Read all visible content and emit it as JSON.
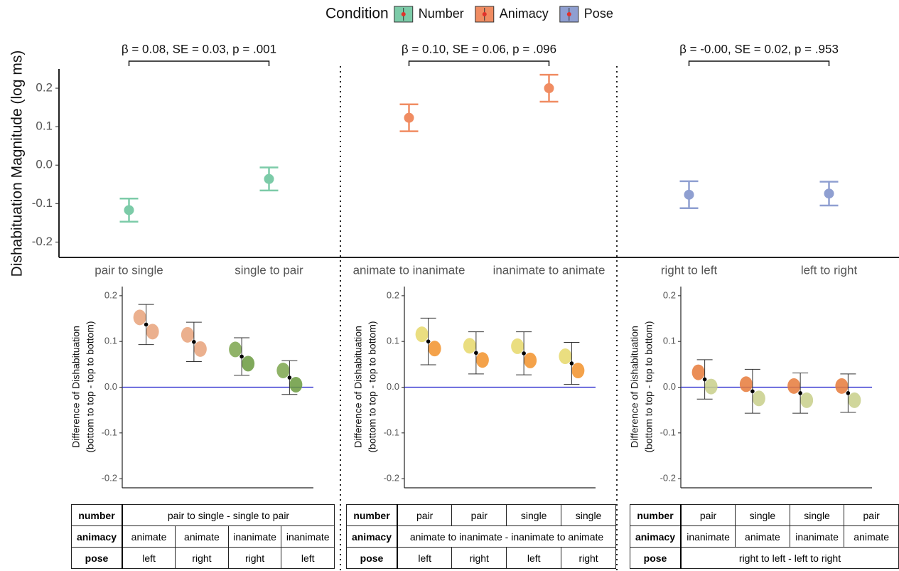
{
  "chart_data": [
    {
      "type": "errorbar",
      "legend_title": "Condition",
      "ylabel": "Dishabituation Magnitude (log ms)",
      "categories": [
        "pair to single",
        "single to pair",
        "animate to inanimate",
        "inanimate to animate",
        "right to left",
        "left to right"
      ],
      "series": [
        {
          "name": "Number",
          "color": "#7ccba8",
          "values": [
            -0.117,
            -0.036,
            null,
            null,
            null,
            null
          ],
          "errors": [
            0.03,
            0.03,
            null,
            null,
            null,
            null
          ]
        },
        {
          "name": "Animacy",
          "color": "#f08c62",
          "values": [
            null,
            null,
            0.123,
            0.2,
            null,
            null
          ],
          "errors": [
            null,
            null,
            0.035,
            0.035,
            null,
            null
          ]
        },
        {
          "name": "Pose",
          "color": "#8f9fd1",
          "values": [
            null,
            null,
            null,
            null,
            -0.077,
            -0.074
          ],
          "errors": [
            null,
            null,
            null,
            null,
            0.035,
            0.031
          ]
        }
      ],
      "annotations": [
        "β = 0.08, SE = 0.03, p = .001",
        "β = 0.10, SE = 0.06, p = .096",
        "β = -0.00, SE = 0.02, p = .953"
      ],
      "ylim": [
        -0.24,
        0.25
      ],
      "yticks": [
        -0.2,
        -0.1,
        {
          "value": 0,
          "label": "0.0"
        },
        0.1,
        0.2
      ]
    },
    {
      "type": "pointrange",
      "ylabel": [
        "Difference of Dishabituation",
        "(bottom to top - top to bottom)"
      ],
      "values": [
        0.137,
        0.099,
        0.067,
        0.021
      ],
      "errors": [
        0.044,
        0.043,
        0.041,
        0.037
      ],
      "color": "#000000",
      "hline": 0,
      "hline_color": "#1f1fcc",
      "ylim": [
        -0.22,
        0.22
      ],
      "yticks": [
        -0.2,
        -0.1,
        {
          "value": 0,
          "label": "0.0"
        },
        0.1,
        0.2
      ],
      "table": [
        [
          "number",
          "pair to single - single to pair"
        ],
        [
          "animacy",
          "animate",
          "animate",
          "inanimate",
          "inanimate"
        ],
        [
          "pose",
          "left",
          "right",
          "right",
          "left"
        ]
      ]
    },
    {
      "type": "pointrange",
      "ylabel": [
        "Difference of Dishabituation",
        "(bottom to top - top to bottom)"
      ],
      "values": [
        0.1,
        0.075,
        0.074,
        0.052
      ],
      "errors": [
        0.051,
        0.046,
        0.047,
        0.046
      ],
      "color": "#000000",
      "hline": 0,
      "hline_color": "#1f1fcc",
      "ylim": [
        -0.22,
        0.22
      ],
      "yticks": [
        -0.2,
        -0.1,
        {
          "value": 0,
          "label": "0.0"
        },
        0.1,
        0.2
      ],
      "table": [
        [
          "number",
          "pair",
          "pair",
          "single",
          "single"
        ],
        [
          "animacy",
          "animate to inanimate - inanimate to animate"
        ],
        [
          "pose",
          "left",
          "right",
          "left",
          "right"
        ]
      ]
    },
    {
      "type": "pointrange",
      "ylabel": [
        "Difference of Dishabituation",
        "(bottom to top - top to bottom)"
      ],
      "values": [
        0.017,
        -0.009,
        -0.013,
        -0.013
      ],
      "errors": [
        0.043,
        0.048,
        0.044,
        0.042
      ],
      "color": "#000000",
      "hline": 0,
      "hline_color": "#1f1fcc",
      "ylim": [
        -0.22,
        0.22
      ],
      "yticks": [
        -0.2,
        -0.1,
        {
          "value": 0,
          "label": "0.0"
        },
        0.1,
        0.2
      ],
      "table": [
        [
          "number",
          "pair",
          "single",
          "single",
          "pair"
        ],
        [
          "animacy",
          "inanimate",
          "animate",
          "inanimate",
          "animate"
        ],
        [
          "pose",
          "right to left - left to right"
        ]
      ]
    }
  ]
}
